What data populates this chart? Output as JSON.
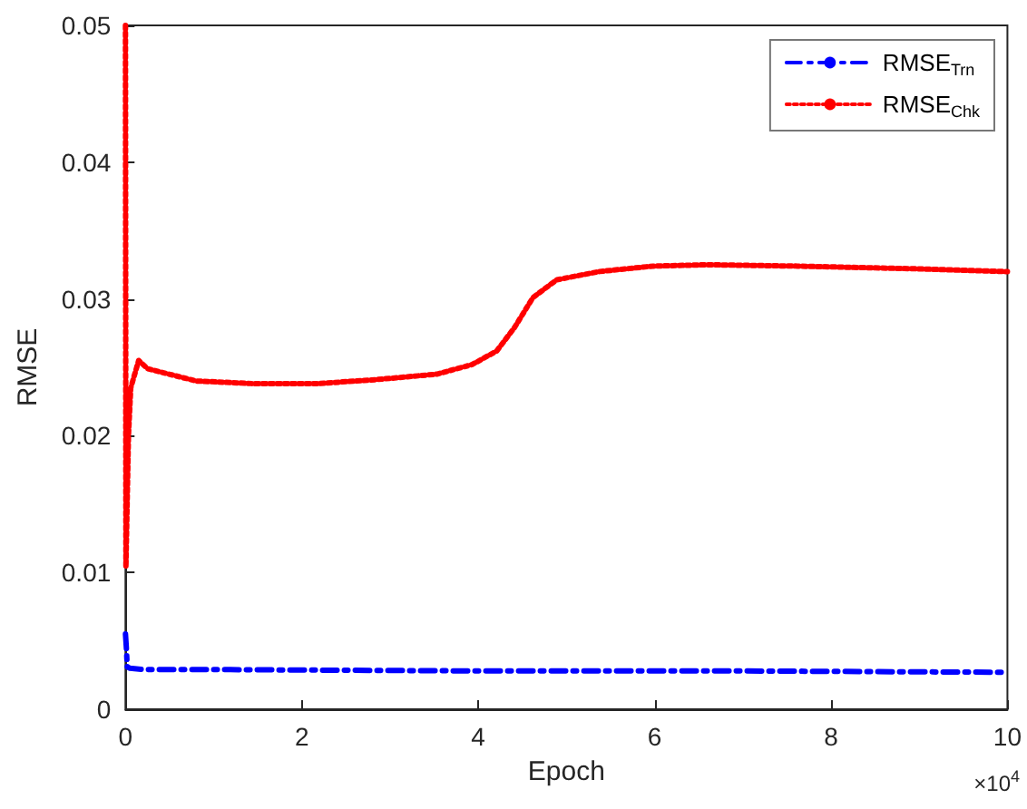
{
  "chart_data": {
    "type": "line",
    "xlabel": "Epoch",
    "ylabel": "RMSE",
    "xlim": [
      0,
      10
    ],
    "xticks": [
      0,
      2,
      4,
      6,
      8,
      10
    ],
    "ylim": [
      0,
      0.05
    ],
    "yticks": [
      0,
      0.01,
      0.02,
      0.03,
      0.04,
      0.05
    ],
    "grid": false,
    "legend": "top right",
    "marker": "none",
    "annotations": [
      "×10$^{4}$"
    ],
    "series": [
      {
        "name": "RMSE$_{Trn}$",
        "color": "#0000ff",
        "line_style": "dashed",
        "x": [
          0,
          0.01,
          0.02,
          0.05,
          0.2,
          1,
          4,
          7,
          10
        ],
        "values": [
          0.0055,
          0.0045,
          0.0031,
          0.003,
          0.0029,
          0.0029,
          0.0028,
          0.0028,
          0.0027
        ]
      },
      {
        "name": "RMSE$_{Chk}$",
        "color": "#ff0000",
        "line_style": "dotted",
        "x": [
          0,
          0.005,
          0.034,
          0.06,
          0.15,
          0.25,
          0.8,
          1.48,
          2.16,
          2.84,
          3.53,
          3.93,
          4.21,
          4.41,
          4.62,
          4.89,
          5.37,
          5.98,
          6.6,
          7.62,
          8.98,
          10
        ],
        "values": [
          0.05,
          0.0104,
          0.02,
          0.0235,
          0.0255,
          0.0249,
          0.024,
          0.0238,
          0.0238,
          0.0241,
          0.0245,
          0.0252,
          0.0262,
          0.0279,
          0.0301,
          0.0314,
          0.032,
          0.0324,
          0.0325,
          0.0324,
          0.0322,
          0.032
        ]
      }
    ]
  }
}
